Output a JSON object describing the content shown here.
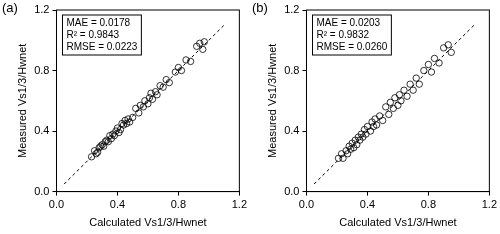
{
  "chart_data": [
    {
      "type": "scatter",
      "title": "(a)",
      "x_label": "Calculated Vs1/3/Hwnet",
      "y_label": "Measured Vs1/3/Hwnet",
      "annotations": [
        "MAE = 0.0178",
        "R² = 0.9843",
        "RMSE = 0.0223"
      ],
      "xlim": [
        0,
        1.2
      ],
      "ylim": [
        0,
        1.2
      ],
      "xticks": [
        {
          "value": 0,
          "label": "0.0"
        },
        0.4,
        0.8,
        1.2
      ],
      "yticks": [
        {
          "value": 0,
          "label": "0.0"
        },
        0.4,
        0.8,
        1.2
      ],
      "grid": false,
      "color": "#000000",
      "series": [
        {
          "type": "scatter",
          "marker": "circle",
          "color": "#000000",
          "values": [
            [
              0.23,
              0.23
            ],
            [
              0.25,
              0.27
            ],
            [
              0.26,
              0.25
            ],
            [
              0.27,
              0.26
            ],
            [
              0.28,
              0.29
            ],
            [
              0.29,
              0.3
            ],
            [
              0.3,
              0.31
            ],
            [
              0.31,
              0.3
            ],
            [
              0.32,
              0.33
            ],
            [
              0.33,
              0.34
            ],
            [
              0.34,
              0.33
            ],
            [
              0.35,
              0.37
            ],
            [
              0.36,
              0.35
            ],
            [
              0.37,
              0.38
            ],
            [
              0.38,
              0.37
            ],
            [
              0.39,
              0.4
            ],
            [
              0.4,
              0.42
            ],
            [
              0.41,
              0.39
            ],
            [
              0.42,
              0.41
            ],
            [
              0.43,
              0.45
            ],
            [
              0.44,
              0.44
            ],
            [
              0.45,
              0.47
            ],
            [
              0.46,
              0.45
            ],
            [
              0.47,
              0.48
            ],
            [
              0.48,
              0.46
            ],
            [
              0.5,
              0.49
            ],
            [
              0.52,
              0.55
            ],
            [
              0.54,
              0.52
            ],
            [
              0.55,
              0.57
            ],
            [
              0.57,
              0.56
            ],
            [
              0.58,
              0.6
            ],
            [
              0.6,
              0.58
            ],
            [
              0.61,
              0.62
            ],
            [
              0.62,
              0.65
            ],
            [
              0.63,
              0.61
            ],
            [
              0.65,
              0.66
            ],
            [
              0.66,
              0.64
            ],
            [
              0.68,
              0.7
            ],
            [
              0.7,
              0.69
            ],
            [
              0.72,
              0.74
            ],
            [
              0.74,
              0.72
            ],
            [
              0.78,
              0.79
            ],
            [
              0.8,
              0.82
            ],
            [
              0.82,
              0.8
            ],
            [
              0.85,
              0.87
            ],
            [
              0.88,
              0.86
            ],
            [
              0.92,
              0.96
            ],
            [
              0.94,
              0.98
            ],
            [
              0.96,
              0.94
            ],
            [
              0.97,
              0.99
            ]
          ]
        },
        {
          "type": "line",
          "line_style": "dashed",
          "color": "#000000",
          "values": [
            [
              0.05,
              0.05
            ],
            [
              1.1,
              1.1
            ]
          ]
        }
      ]
    },
    {
      "type": "scatter",
      "title": "(b)",
      "x_label": "Calculated Vs1/3/Hwnet",
      "y_label": "Measured Vs1/3/Hwnet",
      "annotations": [
        "MAE = 0.0203",
        "R² = 0.9832",
        "RMSE = 0.0260"
      ],
      "xlim": [
        0,
        1.2
      ],
      "ylim": [
        0,
        1.2
      ],
      "xticks": [
        {
          "value": 0,
          "label": "0.0"
        },
        0.4,
        0.8,
        1.2
      ],
      "yticks": [
        {
          "value": 0,
          "label": "0.0"
        },
        0.4,
        0.8,
        1.2
      ],
      "grid": false,
      "color": "#000000",
      "series": [
        {
          "type": "scatter",
          "marker": "circle",
          "color": "#000000",
          "values": [
            [
              0.21,
              0.22
            ],
            [
              0.23,
              0.25
            ],
            [
              0.24,
              0.22
            ],
            [
              0.26,
              0.27
            ],
            [
              0.27,
              0.25
            ],
            [
              0.28,
              0.3
            ],
            [
              0.29,
              0.28
            ],
            [
              0.3,
              0.32
            ],
            [
              0.31,
              0.29
            ],
            [
              0.32,
              0.34
            ],
            [
              0.33,
              0.31
            ],
            [
              0.34,
              0.36
            ],
            [
              0.35,
              0.34
            ],
            [
              0.36,
              0.38
            ],
            [
              0.37,
              0.36
            ],
            [
              0.38,
              0.41
            ],
            [
              0.39,
              0.38
            ],
            [
              0.4,
              0.43
            ],
            [
              0.42,
              0.4
            ],
            [
              0.43,
              0.46
            ],
            [
              0.44,
              0.43
            ],
            [
              0.45,
              0.48
            ],
            [
              0.46,
              0.44
            ],
            [
              0.48,
              0.5
            ],
            [
              0.5,
              0.47
            ],
            [
              0.52,
              0.56
            ],
            [
              0.54,
              0.51
            ],
            [
              0.55,
              0.59
            ],
            [
              0.57,
              0.55
            ],
            [
              0.58,
              0.62
            ],
            [
              0.6,
              0.57
            ],
            [
              0.61,
              0.64
            ],
            [
              0.62,
              0.6
            ],
            [
              0.64,
              0.67
            ],
            [
              0.66,
              0.63
            ],
            [
              0.68,
              0.71
            ],
            [
              0.7,
              0.67
            ],
            [
              0.72,
              0.75
            ],
            [
              0.74,
              0.71
            ],
            [
              0.77,
              0.8
            ],
            [
              0.8,
              0.84
            ],
            [
              0.82,
              0.79
            ],
            [
              0.84,
              0.88
            ],
            [
              0.87,
              0.85
            ],
            [
              0.9,
              0.95
            ],
            [
              0.93,
              0.97
            ],
            [
              0.95,
              0.92
            ]
          ]
        },
        {
          "type": "line",
          "line_style": "dashed",
          "color": "#000000",
          "values": [
            [
              0.05,
              0.05
            ],
            [
              1.1,
              1.1
            ]
          ]
        }
      ]
    }
  ]
}
